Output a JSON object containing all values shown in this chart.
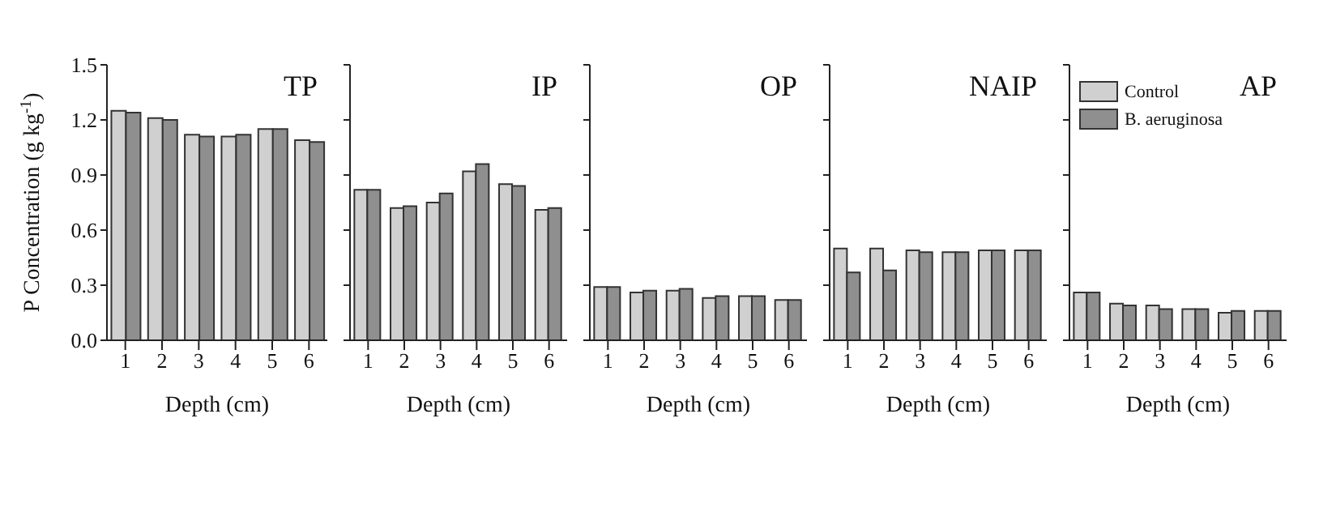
{
  "chart_data": [
    {
      "type": "bar",
      "title": "TP",
      "xlabel": "Depth (cm)",
      "ylabel": "P Concentration (g kg$^{-1}$)",
      "categories": [
        "1",
        "2",
        "3",
        "4",
        "5",
        "6"
      ],
      "series": [
        {
          "color": "#d0d0d0",
          "values": [
            1.25,
            1.21,
            1.12,
            1.11,
            1.15,
            1.09
          ]
        },
        {
          "color": "#8f8f8f",
          "values": [
            1.24,
            1.2,
            1.11,
            1.12,
            1.15,
            1.08
          ]
        }
      ],
      "ylim": [
        0,
        1.5
      ],
      "yticks": [
        {
          "value": 0,
          "label": "0.0"
        },
        0.3,
        0.6,
        0.9,
        1.2,
        1.5
      ],
      "grid": false,
      "legend": false
    },
    {
      "type": "bar",
      "title": "IP",
      "xlabel": "Depth (cm)",
      "categories": [
        "1",
        "2",
        "3",
        "4",
        "5",
        "6"
      ],
      "series": [
        {
          "color": "#d0d0d0",
          "values": [
            0.82,
            0.72,
            0.75,
            0.92,
            0.85,
            0.71
          ]
        },
        {
          "color": "#8f8f8f",
          "values": [
            0.82,
            0.73,
            0.8,
            0.96,
            0.84,
            0.72
          ]
        }
      ],
      "ylim": [
        0,
        1.5
      ],
      "yticks": [
        0,
        0.3,
        0.6,
        0.9,
        1.2,
        1.5
      ],
      "tick_labels": "x",
      "grid": false,
      "legend": false
    },
    {
      "type": "bar",
      "title": "OP",
      "xlabel": "Depth (cm)",
      "categories": [
        "1",
        "2",
        "3",
        "4",
        "5",
        "6"
      ],
      "series": [
        {
          "color": "#d0d0d0",
          "values": [
            0.29,
            0.26,
            0.27,
            0.23,
            0.24,
            0.22
          ]
        },
        {
          "color": "#8f8f8f",
          "values": [
            0.29,
            0.27,
            0.28,
            0.24,
            0.24,
            0.22
          ]
        }
      ],
      "ylim": [
        0,
        1.5
      ],
      "yticks": [
        0,
        0.3,
        0.6,
        0.9,
        1.2,
        1.5
      ],
      "tick_labels": "x",
      "grid": false,
      "legend": false
    },
    {
      "type": "bar",
      "title": "NAIP",
      "xlabel": "Depth (cm)",
      "categories": [
        "1",
        "2",
        "3",
        "4",
        "5",
        "6"
      ],
      "series": [
        {
          "color": "#d0d0d0",
          "values": [
            0.5,
            0.5,
            0.49,
            0.48,
            0.49,
            0.49
          ]
        },
        {
          "color": "#8f8f8f",
          "values": [
            0.37,
            0.38,
            0.48,
            0.48,
            0.49,
            0.49
          ]
        }
      ],
      "ylim": [
        0,
        1.5
      ],
      "yticks": [
        0,
        0.3,
        0.6,
        0.9,
        1.2,
        1.5
      ],
      "tick_labels": "x",
      "grid": false,
      "legend": false
    },
    {
      "type": "bar",
      "title": "AP",
      "xlabel": "Depth (cm)",
      "categories": [
        "1",
        "2",
        "3",
        "4",
        "5",
        "6"
      ],
      "series": [
        {
          "name": "Control",
          "color": "#d0d0d0",
          "values": [
            0.26,
            0.2,
            0.19,
            0.17,
            0.15,
            0.16
          ]
        },
        {
          "name": "B. aeruginosa",
          "color": "#8f8f8f",
          "values": [
            0.26,
            0.19,
            0.17,
            0.17,
            0.16,
            0.16
          ]
        }
      ],
      "ylim": [
        0,
        1.5
      ],
      "yticks": [
        0,
        0.3,
        0.6,
        0.9,
        1.2,
        1.5
      ],
      "tick_labels": "x",
      "grid": false,
      "legend": "top left"
    }
  ]
}
